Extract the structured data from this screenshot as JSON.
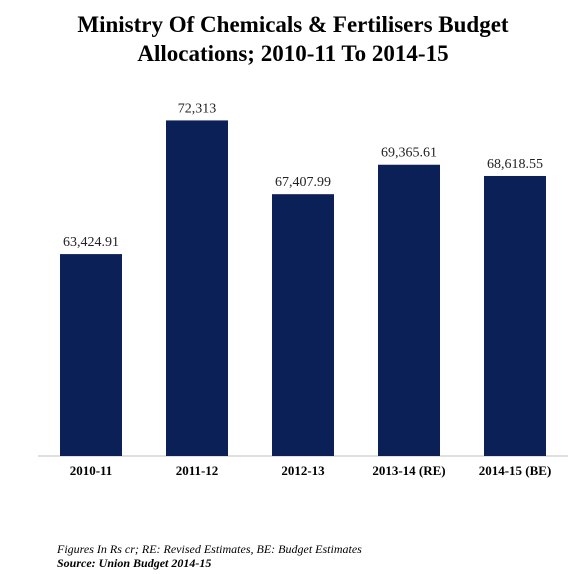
{
  "title_line1": "Ministry Of Chemicals & Fertilisers Budget",
  "title_line2": "Allocations; 2010-11 To 2014-15",
  "chart_data": {
    "type": "bar",
    "title": "Ministry Of Chemicals & Fertilisers Budget Allocations; 2010-11 To 2014-15",
    "xlabel": "",
    "ylabel": "",
    "categories": [
      "2010-11",
      "2011-12",
      "2012-13",
      "2013-14 (RE)",
      "2014-15 (BE)"
    ],
    "values": [
      63424.91,
      72313,
      67407.99,
      69365.61,
      68618.55
    ],
    "value_labels": [
      "63,424.91",
      "72,313",
      "67,407.99",
      "69,365.61",
      "68,618.55"
    ],
    "ylim": [
      50000,
      75000
    ],
    "grid": false,
    "legend": "none",
    "bar_color": "#0c2058"
  },
  "footnote": "Figures In Rs cr; RE: Revised Estimates, BE: Budget Estimates",
  "source": "Source: Union Budget 2014-15"
}
